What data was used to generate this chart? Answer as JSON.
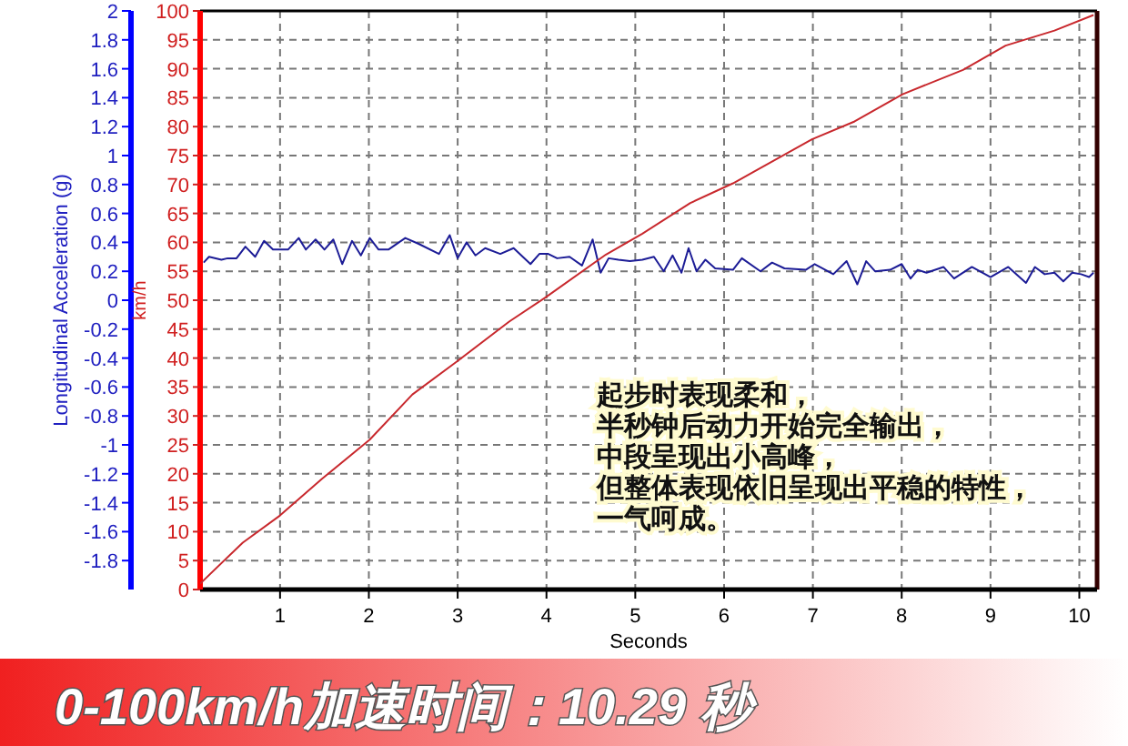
{
  "chart_data": {
    "type": "line",
    "title": "0-100km/h加速时间：10.29 秒",
    "xlabel": "Seconds",
    "ylabel": "Longitudinal Acceleration (g)",
    "y2label": "km/h",
    "annotations": [
      "起步时表现柔和，",
      "半秒钟后动力开始完全输出，",
      "中段呈现出小高峰，",
      "但整体表现依旧呈现出平稳的特性，",
      "一气呵成。"
    ],
    "xlim": [
      0.1,
      10.2
    ],
    "xticks": [
      1,
      2,
      3,
      4,
      5,
      6,
      7,
      8,
      9,
      10
    ],
    "ylim": [
      -2,
      2
    ],
    "yticks": [
      -1.8,
      -1.6,
      -1.4,
      -1.2,
      -1,
      -0.8,
      -0.6,
      -0.4,
      -0.2,
      0,
      0.2,
      0.4,
      0.6,
      0.8,
      1,
      1.2,
      1.4,
      1.6,
      1.8,
      2
    ],
    "y2lim": [
      0,
      100
    ],
    "y2ticks": [
      0,
      5,
      10,
      15,
      20,
      25,
      30,
      35,
      40,
      45,
      50,
      55,
      60,
      65,
      70,
      75,
      80,
      85,
      90,
      95,
      100
    ],
    "grid": true,
    "series": [
      {
        "color": "#1c1c96",
        "x": [
          0.14,
          0.2,
          0.34,
          0.41,
          0.51,
          0.61,
          0.72,
          0.82,
          0.92,
          1.09,
          1.21,
          1.29,
          1.4,
          1.5,
          1.6,
          1.7,
          1.81,
          1.91,
          2.01,
          2.11,
          2.22,
          2.41,
          2.56,
          2.79,
          2.91,
          3.0,
          3.1,
          3.2,
          3.31,
          3.48,
          3.63,
          3.82,
          3.92,
          4.02,
          4.12,
          4.26,
          4.4,
          4.52,
          4.61,
          4.7,
          4.81,
          4.94,
          5.08,
          5.21,
          5.32,
          5.42,
          5.52,
          5.6,
          5.69,
          5.79,
          5.9,
          6.1,
          6.2,
          6.41,
          6.54,
          6.68,
          6.92,
          7.02,
          7.23,
          7.38,
          7.5,
          7.6,
          7.7,
          7.87,
          8.0,
          8.1,
          8.18,
          8.28,
          8.47,
          8.59,
          8.79,
          9.0,
          9.2,
          9.4,
          9.5,
          9.61,
          9.72,
          9.82,
          9.92,
          10.02,
          10.11,
          10.16
        ],
        "values": [
          0.26,
          0.3,
          0.28,
          0.29,
          0.29,
          0.37,
          0.3,
          0.41,
          0.35,
          0.35,
          0.43,
          0.35,
          0.42,
          0.35,
          0.42,
          0.25,
          0.41,
          0.31,
          0.43,
          0.35,
          0.35,
          0.43,
          0.39,
          0.32,
          0.45,
          0.29,
          0.4,
          0.31,
          0.36,
          0.32,
          0.36,
          0.25,
          0.32,
          0.32,
          0.29,
          0.3,
          0.24,
          0.42,
          0.19,
          0.29,
          0.28,
          0.27,
          0.28,
          0.3,
          0.2,
          0.31,
          0.19,
          0.36,
          0.2,
          0.28,
          0.22,
          0.21,
          0.29,
          0.2,
          0.26,
          0.22,
          0.21,
          0.25,
          0.18,
          0.27,
          0.11,
          0.27,
          0.2,
          0.21,
          0.25,
          0.15,
          0.21,
          0.19,
          0.23,
          0.15,
          0.23,
          0.16,
          0.23,
          0.12,
          0.23,
          0.18,
          0.19,
          0.13,
          0.19,
          0.18,
          0.16,
          0.19
        ]
      },
      {
        "color": "#c8282d",
        "axis": "y2",
        "x": [
          0.1,
          0.58,
          1.0,
          1.47,
          2.01,
          2.49,
          3.0,
          3.58,
          3.99,
          4.67,
          5.08,
          5.62,
          6.1,
          6.31,
          6.99,
          7.47,
          8.01,
          8.69,
          9.17,
          9.72,
          10.16
        ],
        "values": [
          1,
          8.1,
          12.8,
          19.1,
          25.9,
          33.7,
          39.5,
          46.3,
          50.5,
          57.9,
          61.5,
          66.8,
          70.2,
          72.0,
          77.8,
          80.9,
          85.6,
          89.8,
          94.0,
          96.6,
          99.3
        ]
      }
    ]
  }
}
